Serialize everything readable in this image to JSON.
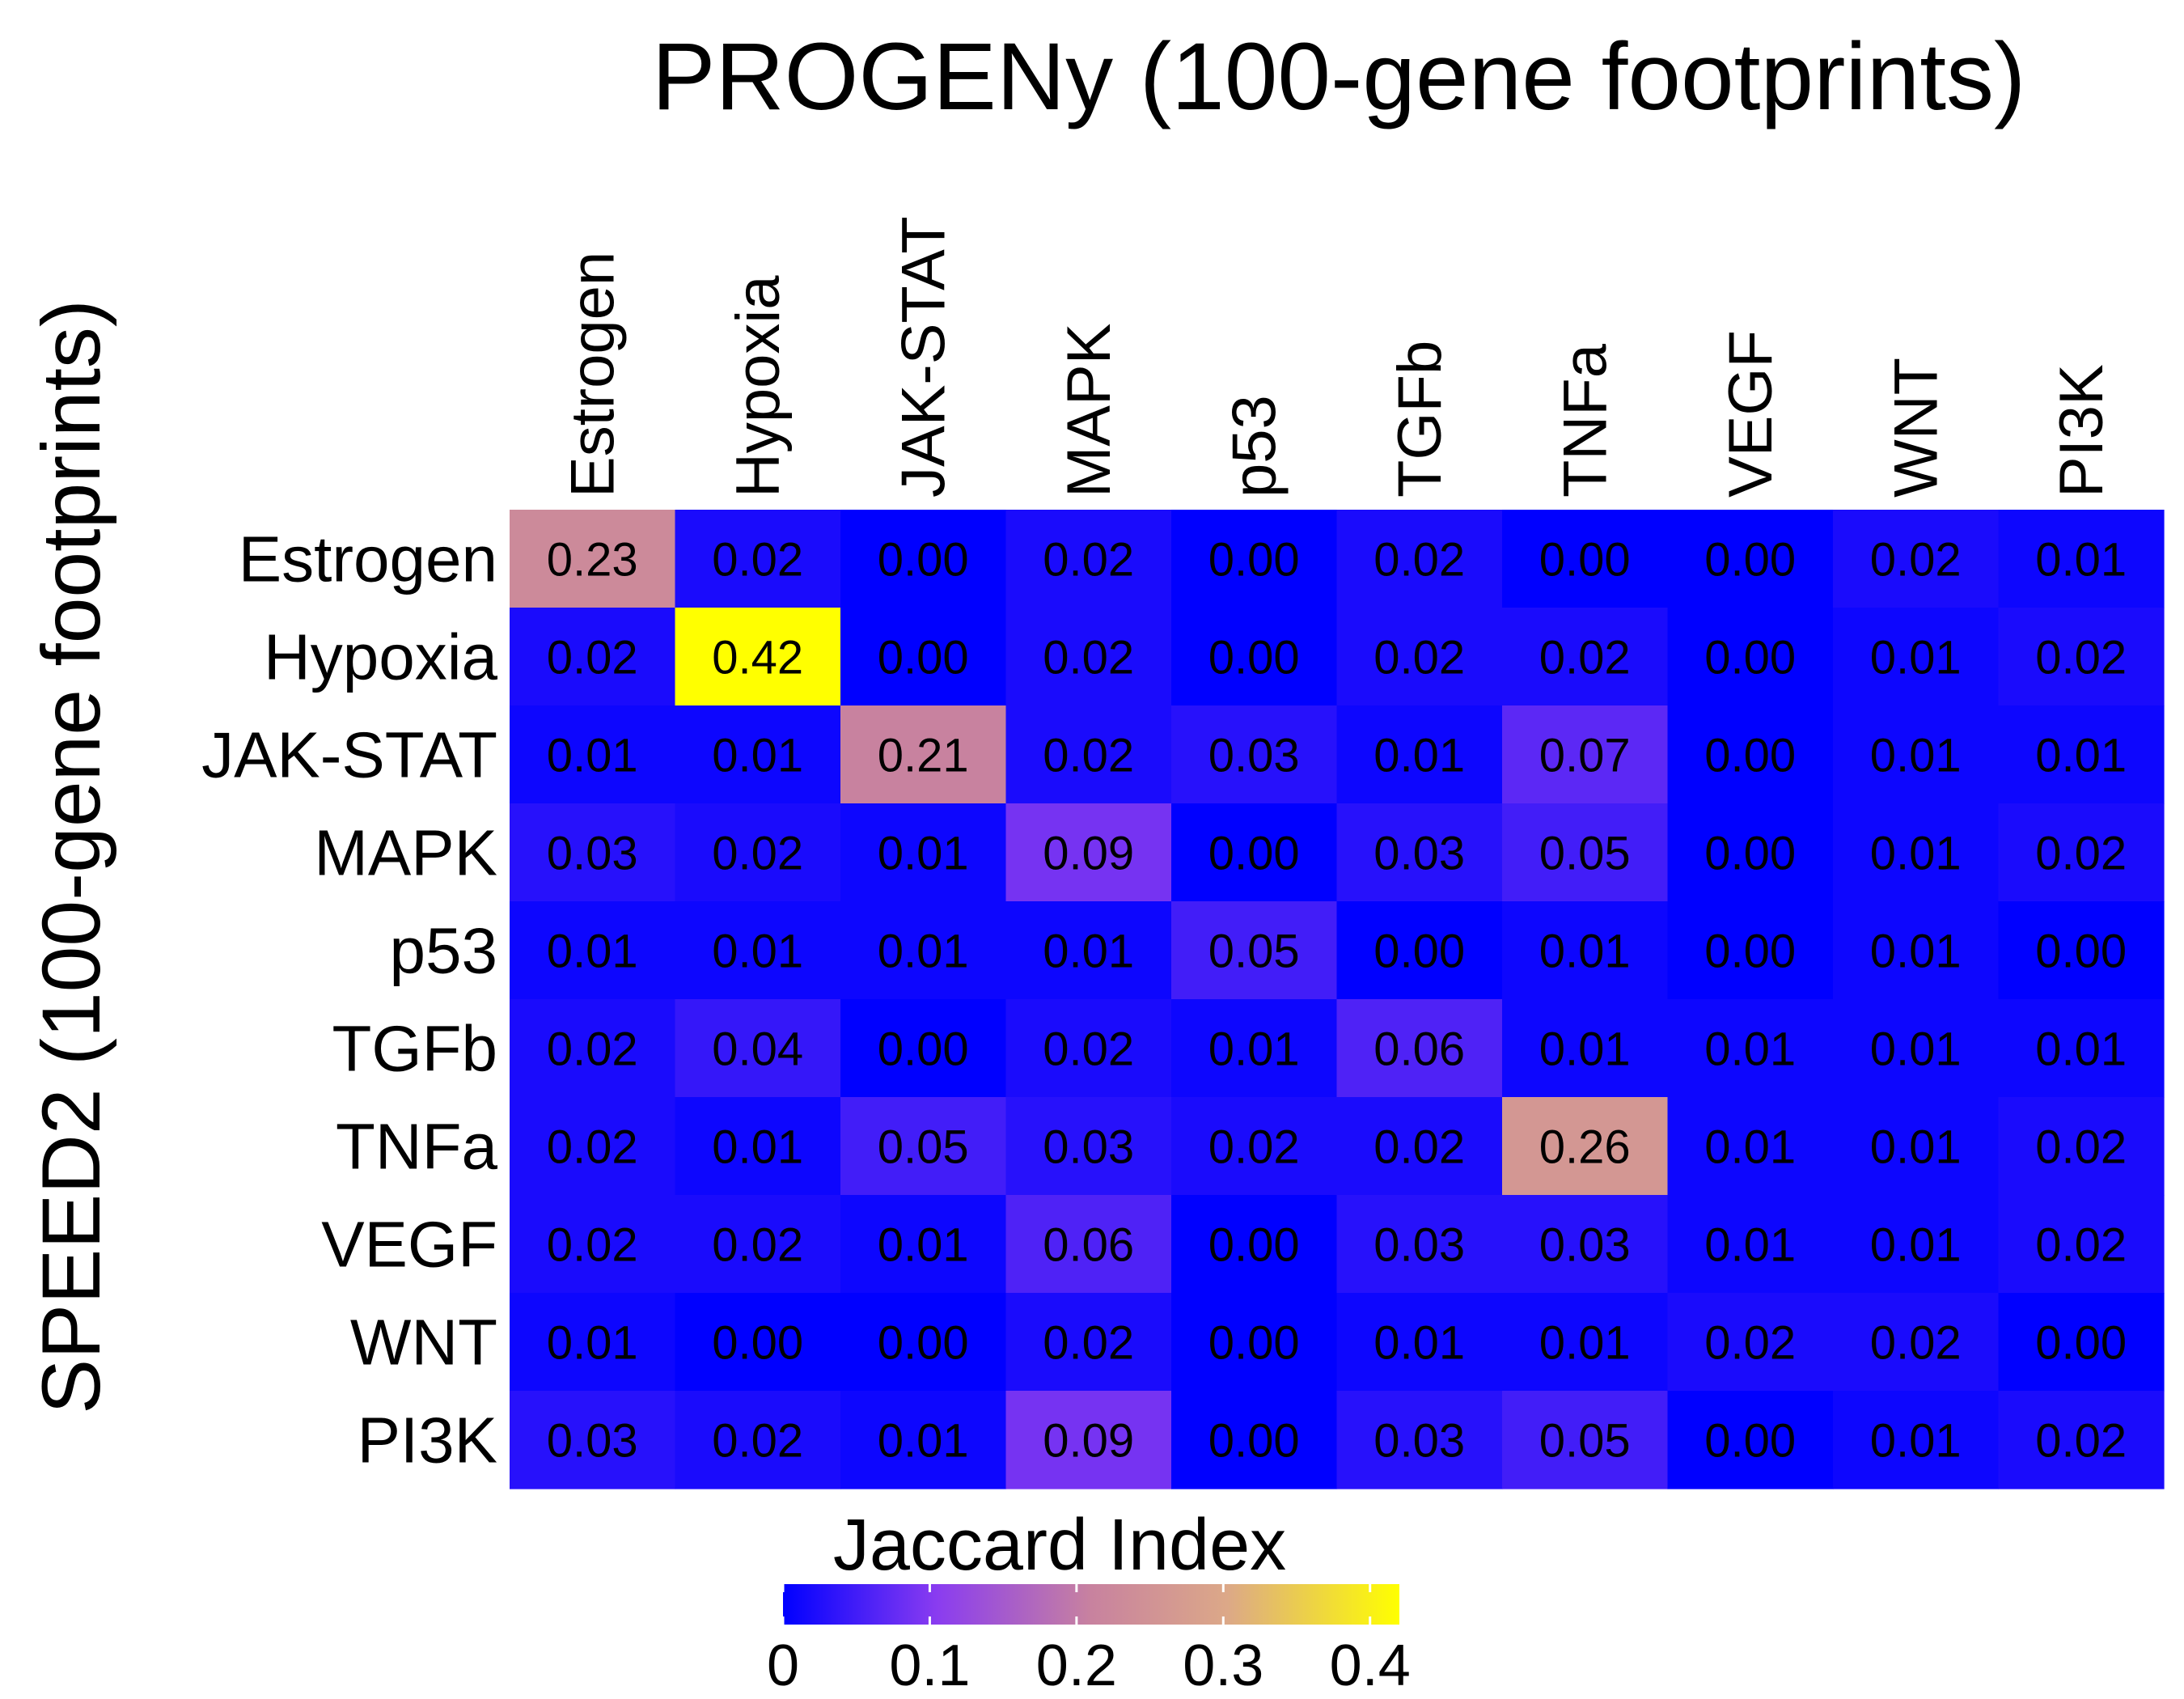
{
  "chart_data": {
    "type": "heatmap",
    "title": "PROGENy (100-gene footprints)",
    "ylabel": "SPEED2 (100-gene footprints)",
    "columns": [
      "Estrogen",
      "Hypoxia",
      "JAK-STAT",
      "MAPK",
      "p53",
      "TGFb",
      "TNFa",
      "VEGF",
      "WNT",
      "PI3K"
    ],
    "rows": [
      "Estrogen",
      "Hypoxia",
      "JAK-STAT",
      "MAPK",
      "p53",
      "TGFb",
      "TNFa",
      "VEGF",
      "WNT",
      "PI3K"
    ],
    "values": [
      [
        0.23,
        0.02,
        0.0,
        0.02,
        0.0,
        0.02,
        0.0,
        0.0,
        0.02,
        0.01
      ],
      [
        0.02,
        0.42,
        0.0,
        0.02,
        0.0,
        0.02,
        0.02,
        0.0,
        0.01,
        0.02
      ],
      [
        0.01,
        0.01,
        0.21,
        0.02,
        0.03,
        0.01,
        0.07,
        0.0,
        0.01,
        0.01
      ],
      [
        0.03,
        0.02,
        0.01,
        0.09,
        0.0,
        0.03,
        0.05,
        0.0,
        0.01,
        0.02
      ],
      [
        0.01,
        0.01,
        0.01,
        0.01,
        0.05,
        0.0,
        0.01,
        0.0,
        0.01,
        0.0
      ],
      [
        0.02,
        0.04,
        0.0,
        0.02,
        0.01,
        0.06,
        0.01,
        0.01,
        0.01,
        0.01
      ],
      [
        0.02,
        0.01,
        0.05,
        0.03,
        0.02,
        0.02,
        0.26,
        0.01,
        0.01,
        0.02
      ],
      [
        0.02,
        0.02,
        0.01,
        0.06,
        0.0,
        0.03,
        0.03,
        0.01,
        0.01,
        0.02
      ],
      [
        0.01,
        0.0,
        0.0,
        0.02,
        0.0,
        0.01,
        0.01,
        0.02,
        0.02,
        0.0
      ],
      [
        0.03,
        0.02,
        0.01,
        0.09,
        0.0,
        0.03,
        0.05,
        0.0,
        0.01,
        0.02
      ]
    ],
    "legend": {
      "title": "Jaccard Index",
      "ticks": [
        "0",
        "0.1",
        "0.2",
        "0.3",
        "0.4"
      ],
      "range": [
        0,
        0.42
      ],
      "placement": "bottom"
    },
    "colors": {
      "low": "#0000ff",
      "mid1": "#8a3cf0",
      "mid2": "#c8829f",
      "mid3": "#dca888",
      "high": "#ffff00"
    }
  }
}
